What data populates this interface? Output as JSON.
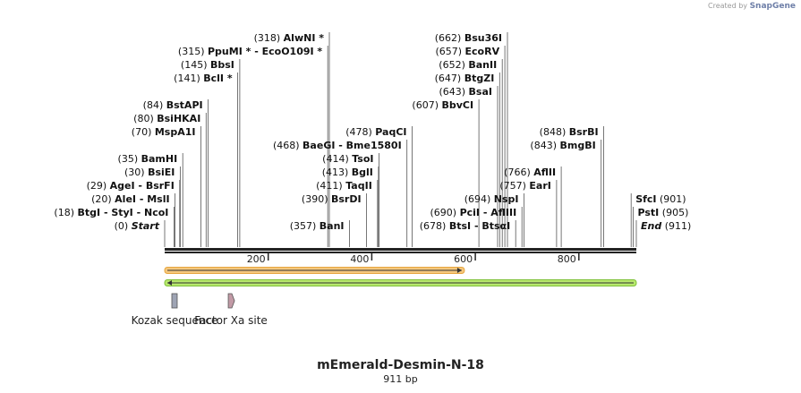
{
  "brand": {
    "prefix": "Created by",
    "name": "SnapGene"
  },
  "construct": {
    "name": "mEmerald-Desmin-N-18",
    "length_label": "911 bp",
    "length_bp": 911
  },
  "ruler": {
    "ticks": [
      {
        "bp": 200,
        "label": "200"
      },
      {
        "bp": 400,
        "label": "400"
      },
      {
        "bp": 600,
        "label": "600"
      },
      {
        "bp": 800,
        "label": "800"
      }
    ]
  },
  "colors": {
    "backbone": "#222222",
    "orf_forward_fill": "#f5c77c",
    "orf_forward_outline": "#e6a640",
    "orf_reverse_fill": "#b8e86e",
    "orf_reverse_outline": "#7fc23a",
    "kozak_fill": "#9ea4b4",
    "factor_xa_fill": "#c29aa6",
    "leader": "#555555"
  },
  "features": [
    {
      "name": "Kozak sequence",
      "bp": 19,
      "shape": "box"
    },
    {
      "name": "Factor Xa site",
      "bp": 128,
      "shape": "arrow"
    }
  ],
  "orfs": [
    {
      "start_bp": 0,
      "end_bp": 579,
      "direction": "forward"
    },
    {
      "start_bp": 911,
      "end_bp": 0,
      "direction": "reverse"
    }
  ],
  "sites": [
    {
      "pos": "(0)",
      "name": "Start",
      "bp": 0,
      "italic": true
    },
    {
      "pos": "(18)",
      "name": "BtgI - StyI - NcoI",
      "bp": 18
    },
    {
      "pos": "(20)",
      "name": "AleI - MslI",
      "bp": 20
    },
    {
      "pos": "(29)",
      "name": "AgeI - BsrFI",
      "bp": 29
    },
    {
      "pos": "(30)",
      "name": "BsiEI",
      "bp": 30
    },
    {
      "pos": "(35)",
      "name": "BamHI",
      "bp": 35
    },
    {
      "pos": "(70)",
      "name": "MspA1I",
      "bp": 70
    },
    {
      "pos": "(80)",
      "name": "BsiHKAI",
      "bp": 80
    },
    {
      "pos": "(84)",
      "name": "BstAPI",
      "bp": 84
    },
    {
      "pos": "(141)",
      "name": "BclI *",
      "bp": 141
    },
    {
      "pos": "(145)",
      "name": "BbsI",
      "bp": 145
    },
    {
      "pos": "(315)",
      "name": "PpuMI * - EcoO109I *",
      "bp": 315
    },
    {
      "pos": "(318)",
      "name": "AlwNI *",
      "bp": 318
    },
    {
      "pos": "(357)",
      "name": "BanI",
      "bp": 357
    },
    {
      "pos": "(390)",
      "name": "BsrDI",
      "bp": 390
    },
    {
      "pos": "(411)",
      "name": "TaqII",
      "bp": 411
    },
    {
      "pos": "(413)",
      "name": "BglI",
      "bp": 413
    },
    {
      "pos": "(414)",
      "name": "TsoI",
      "bp": 414
    },
    {
      "pos": "(468)",
      "name": "BaeGI - Bme1580I",
      "bp": 468
    },
    {
      "pos": "(478)",
      "name": "PaqCI",
      "bp": 478
    },
    {
      "pos": "(607)",
      "name": "BbvCI",
      "bp": 607
    },
    {
      "pos": "(643)",
      "name": "BsaI",
      "bp": 643
    },
    {
      "pos": "(647)",
      "name": "BtgZI",
      "bp": 647
    },
    {
      "pos": "(652)",
      "name": "BanII",
      "bp": 652
    },
    {
      "pos": "(657)",
      "name": "EcoRV",
      "bp": 657
    },
    {
      "pos": "(662)",
      "name": "Bsu36I",
      "bp": 662
    },
    {
      "pos": "(678)",
      "name": "BtsI - BtsαI",
      "bp": 678
    },
    {
      "pos": "(690)",
      "name": "PciI - AflIII",
      "bp": 690
    },
    {
      "pos": "(694)",
      "name": "NspI",
      "bp": 694
    },
    {
      "pos": "(757)",
      "name": "EarI",
      "bp": 757
    },
    {
      "pos": "(766)",
      "name": "AflII",
      "bp": 766
    },
    {
      "pos": "(843)",
      "name": "BmgBI",
      "bp": 843
    },
    {
      "pos": "(848)",
      "name": "BsrBI",
      "bp": 848
    },
    {
      "pos": "(901)",
      "name": "SfcI",
      "bp": 901
    },
    {
      "pos": "(905)",
      "name": "PstI",
      "bp": 905
    },
    {
      "pos": "(911)",
      "name": "End",
      "bp": 911,
      "italic": true
    }
  ]
}
